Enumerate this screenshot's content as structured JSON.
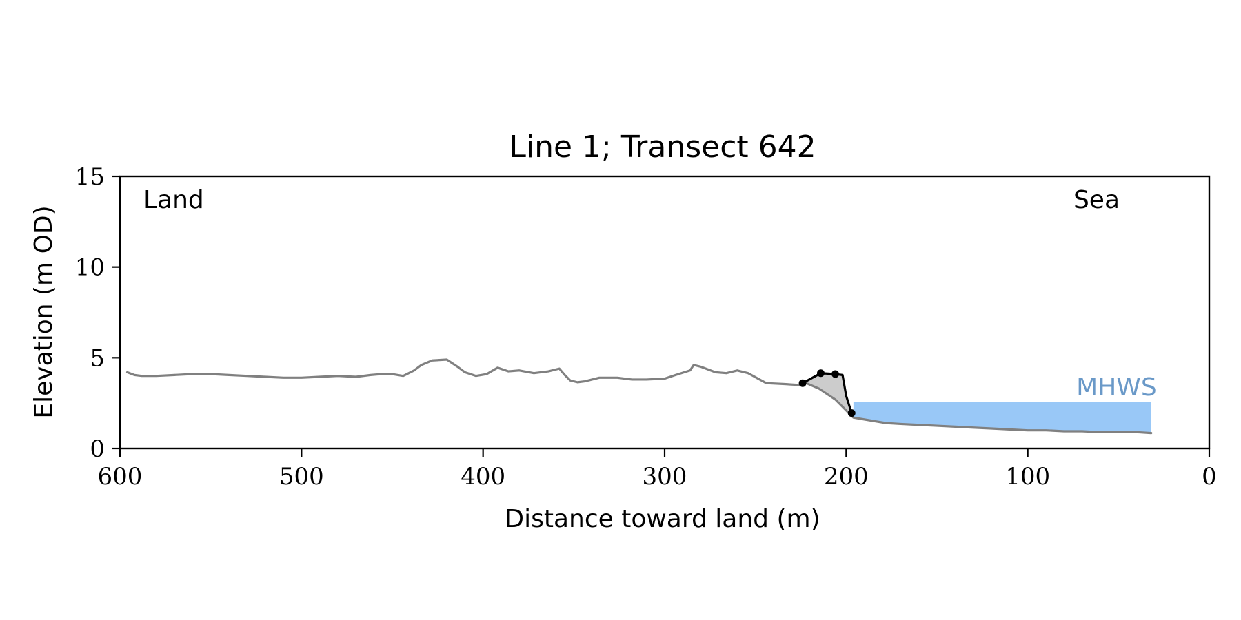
{
  "chart_data": {
    "type": "line",
    "title": "Line 1; Transect 642",
    "xlabel": "Distance toward land (m)",
    "ylabel": "Elevation (m OD)",
    "xlim": [
      600,
      0
    ],
    "ylim": [
      0,
      15
    ],
    "x_ticks": [
      600,
      500,
      400,
      300,
      200,
      100,
      0
    ],
    "y_ticks": [
      0,
      5,
      10,
      15
    ],
    "grid": false,
    "legend": "none",
    "annotations": {
      "land": "Land",
      "sea": "Sea",
      "mhws": "MHWS"
    },
    "series": [
      {
        "role": "profile",
        "color": "#808080",
        "x": [
          596,
          592,
          588,
          580,
          570,
          560,
          550,
          540,
          530,
          520,
          510,
          500,
          490,
          480,
          470,
          462,
          456,
          450,
          444,
          438,
          434,
          428,
          420,
          414,
          410,
          404,
          398,
          392,
          386,
          380,
          372,
          364,
          358,
          355,
          352,
          348,
          344,
          336,
          326,
          318,
          310,
          300,
          294,
          286,
          284,
          280,
          272,
          266,
          260,
          254,
          244,
          234,
          226,
          223,
          222,
          215,
          206,
          200,
          196,
          190,
          184,
          178,
          170,
          160,
          150,
          140,
          130,
          120,
          110,
          100,
          90,
          80,
          70,
          60,
          50,
          40,
          32
        ],
        "y": [
          4.2,
          4.05,
          4.0,
          4.0,
          4.05,
          4.1,
          4.1,
          4.05,
          4.0,
          3.95,
          3.9,
          3.9,
          3.95,
          4.0,
          3.95,
          4.05,
          4.1,
          4.1,
          4.0,
          4.3,
          4.6,
          4.85,
          4.9,
          4.5,
          4.2,
          4.0,
          4.1,
          4.45,
          4.25,
          4.3,
          4.15,
          4.25,
          4.4,
          4.05,
          3.75,
          3.65,
          3.7,
          3.9,
          3.9,
          3.8,
          3.8,
          3.85,
          4.05,
          4.3,
          4.6,
          4.5,
          4.2,
          4.15,
          4.3,
          4.15,
          3.6,
          3.55,
          3.5,
          3.6,
          3.6,
          3.3,
          2.7,
          2.1,
          1.7,
          1.6,
          1.5,
          1.4,
          1.35,
          1.3,
          1.25,
          1.2,
          1.15,
          1.1,
          1.05,
          1.0,
          1.0,
          0.95,
          0.95,
          0.9,
          0.9,
          0.9,
          0.85
        ]
      },
      {
        "role": "cliff",
        "color": "#000000",
        "x": [
          224,
          214,
          206,
          202,
          200,
          197
        ],
        "y": [
          3.6,
          4.15,
          4.1,
          4.05,
          2.9,
          1.95
        ],
        "markers_x": [
          224,
          214,
          206,
          197
        ],
        "markers_y": [
          3.6,
          4.15,
          4.1,
          1.95
        ]
      }
    ],
    "mhws_band": {
      "label": "MHWS",
      "x_start": 196,
      "x_end": 32,
      "level": 2.55,
      "color": "#99c8f7",
      "label_color": "#6a99c8"
    },
    "shade_color": "#cccccc"
  }
}
